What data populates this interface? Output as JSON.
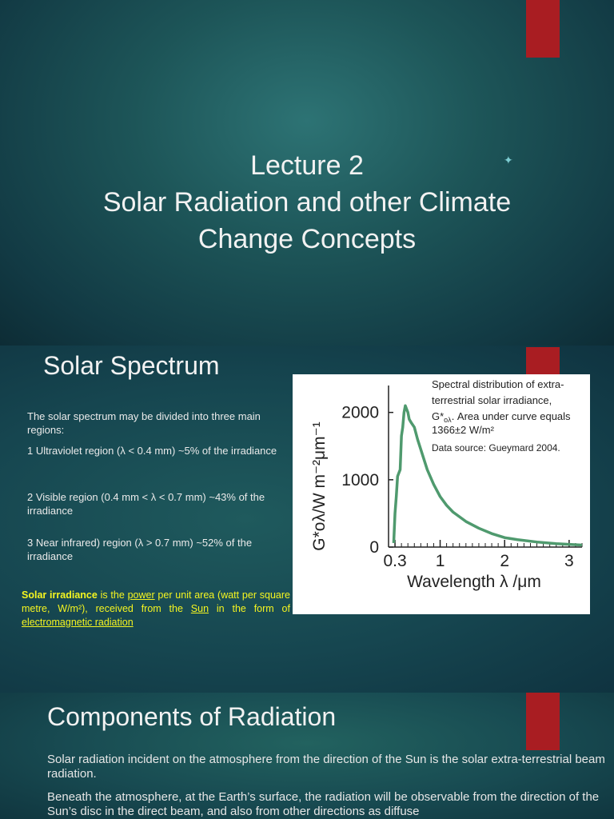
{
  "slide1": {
    "title_line1": "Lecture 2",
    "title_line2": "Solar Radiation and other Climate",
    "title_line3": "Change Concepts"
  },
  "slide2": {
    "heading": "Solar Spectrum",
    "intro": "The solar spectrum may be divided into three main regions:",
    "region1": "1 Ultraviolet region (λ < 0.4 mm) ~5% of the irradiance",
    "region2": "2 Visible region (0.4 mm < λ < 0.7 mm) ~43% of the irradiance",
    "region3": "3 Near infrared) region (λ > 0.7 mm) ~52% of the irradiance",
    "def_term": "Solar irradiance",
    "def_t1": " is the ",
    "def_link1": "power",
    "def_t2": " per unit area (watt per square metre, W/m²), received from the ",
    "def_link2": "Sun",
    "def_t3": " in the form of ",
    "def_link3": "electromagnetic radiation"
  },
  "slide3": {
    "heading": "Components of Radiation",
    "para1": "Solar radiation incident on the atmosphere from the direction of the Sun is the solar extra-terrestrial beam radiation.",
    "para2": "Beneath the atmosphere, at the Earth’s surface, the radiation will be observable from the direction of the Sun’s disc in the direct beam, and also from other directions as diffuse"
  },
  "chart_data": {
    "type": "line",
    "ylabel": "G*oλ/W m⁻²μm⁻¹",
    "xlabel": "Wavelength λ /μm",
    "xticks": [
      "0.3",
      "1",
      "2",
      "3"
    ],
    "yticks": [
      "0",
      "1000",
      "2000"
    ],
    "xlim": [
      0.2,
      3.2
    ],
    "ylim": [
      0,
      2400
    ],
    "annotation_line1": "Spectral distribution of extra-",
    "annotation_line2": "terrestrial solar irradiance,",
    "annotation_line3_sym": "G*",
    "annotation_line3_sub": "oλ",
    "annotation_line3_rest": ". Area under curve equals",
    "annotation_line4": "1366±2 W/m²",
    "annotation_source": "Data source: Gueymard 2004.",
    "series_color": "#4f9a6e",
    "series": [
      {
        "x": [
          0.28,
          0.3,
          0.32,
          0.34,
          0.36,
          0.38,
          0.4,
          0.42,
          0.44,
          0.46,
          0.48,
          0.5,
          0.52,
          0.55,
          0.6,
          0.65,
          0.7,
          0.75,
          0.8,
          0.9,
          1.0,
          1.1,
          1.2,
          1.4,
          1.6,
          1.8,
          2.0,
          2.2,
          2.5,
          2.8,
          3.0,
          3.2
        ],
        "y": [
          60,
          500,
          750,
          1050,
          1100,
          1150,
          1650,
          1780,
          2000,
          2100,
          2050,
          2000,
          1900,
          1850,
          1780,
          1600,
          1450,
          1300,
          1150,
          930,
          750,
          620,
          520,
          380,
          280,
          200,
          140,
          110,
          75,
          50,
          40,
          30
        ]
      }
    ]
  },
  "colors": {
    "accent_red": "#a91d22",
    "highlight_yellow": "#f5f520"
  }
}
